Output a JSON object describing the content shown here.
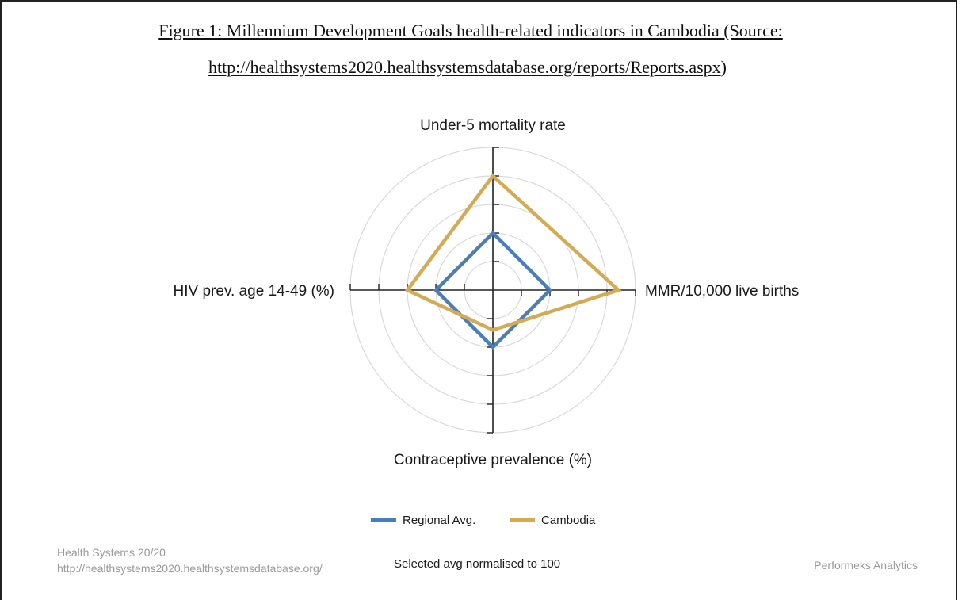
{
  "figure": {
    "title_line1": "Figure 1: Millennium Development Goals health-related indicators in Cambodia (Source:",
    "title_line2_url": "http://healthsystems2020.healthsystemsdatabase.org/reports/Reports.aspx",
    "title_line2_close": ")"
  },
  "chart_data": {
    "type": "radar",
    "axes": [
      "Under-5 mortality rate",
      "MMR/10,000 live births",
      "Contraceptive prevalence (%)",
      "HIV prev. age 14-49 (%)"
    ],
    "rmax": 250,
    "rings": [
      50,
      100,
      150,
      200,
      250
    ],
    "series": [
      {
        "name": "Regional Avg.",
        "color": "#4a7ebb",
        "values": [
          100,
          100,
          100,
          100
        ]
      },
      {
        "name": "Cambodia",
        "color": "#d4aa55",
        "values": [
          200,
          220,
          70,
          150
        ]
      }
    ],
    "footnote": "Selected avg normalised to 100"
  },
  "footer": {
    "source_line1": "Health Systems 20/20",
    "source_line2": "http://healthsystems2020.healthsystemsdatabase.org/",
    "brand": "Performeks Analytics"
  }
}
